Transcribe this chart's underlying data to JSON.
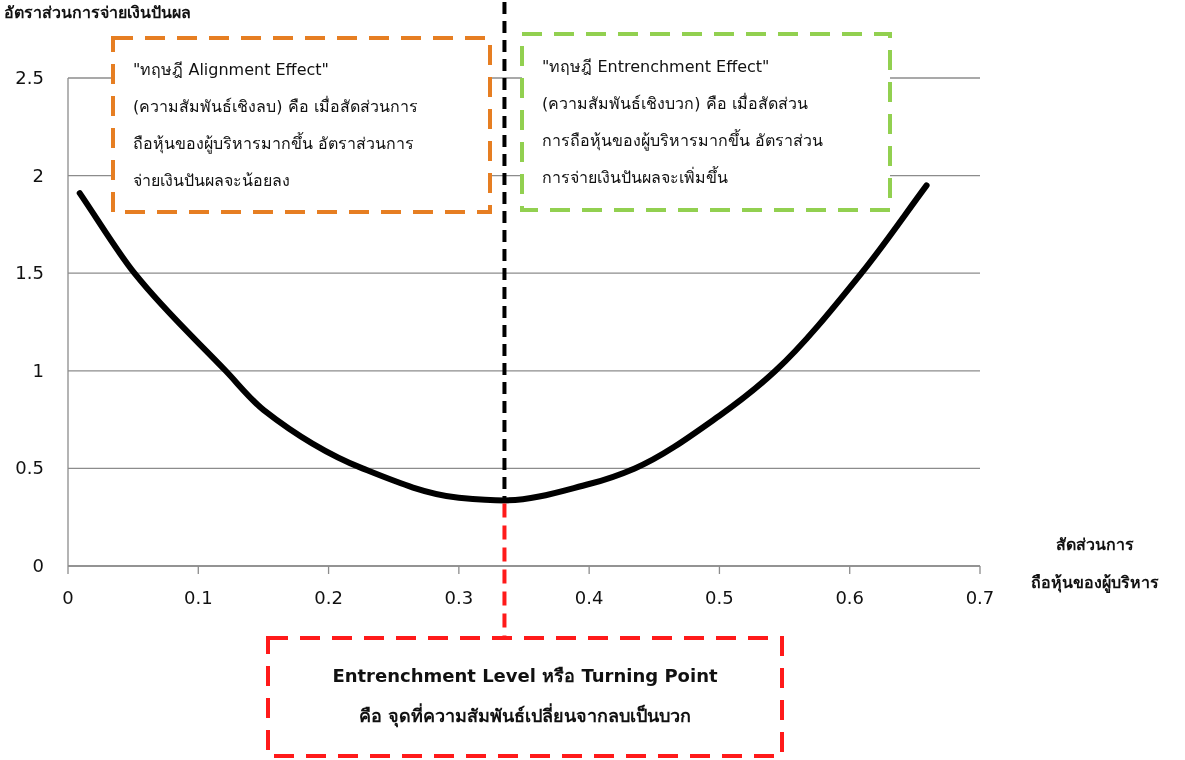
{
  "chart_data": {
    "type": "line",
    "ylabel": "อัตราส่วนการจ่ายเงินปันผล",
    "xlabel": "สัดส่วนการ\nถือหุ้นของผู้บริหาร",
    "xlim": [
      0,
      0.7
    ],
    "xticks": [
      0,
      0.1,
      0.2,
      0.3,
      0.4,
      0.5,
      0.6,
      0.7
    ],
    "ylim": [
      0,
      2.5
    ],
    "yticks": [
      0,
      0.5,
      1,
      1.5,
      2,
      2.5
    ],
    "grid": "y",
    "series": [
      {
        "color": "#000000",
        "x": [
          0.009,
          0.051,
          0.121,
          0.15,
          0.226,
          0.3,
          0.335,
          0.4,
          0.435,
          0.5,
          0.543,
          0.609,
          0.659
        ],
        "values": [
          1.91,
          1.5,
          1.0,
          0.8,
          0.5,
          0.35,
          0.336,
          0.42,
          0.5,
          0.77,
          1.0,
          1.5,
          1.95
        ]
      }
    ],
    "ref_lines": [
      {
        "axis": "x",
        "value": 0.335,
        "color": "#000000",
        "line_style": "dashed"
      }
    ],
    "annotations": [
      "\"ทฤษฎี Alignment Effect\"\n(ความสัมพันธ์เชิงลบ) คือ เมื่อสัดส่วนการ\nถือหุ้นของผู้บริหารมากขึ้น อัตราส่วนการ\nจ่ายเงินปันผลจะน้อยลง",
      "\"ทฤษฎี Entrenchment Effect\"\n(ความสัมพันธ์เชิงบวก) คือ เมื่อสัดส่วน\nการถือหุ้นของผู้บริหารมากขึ้น อัตราส่วน\nการจ่ายเงินปันผลจะเพิ่มขึ้น",
      "Entrenchment Level หรือ Turning Point\nคือ จุดที่ความสัมพันธ์เปลี่ยนจากลบเป็นบวก"
    ]
  }
}
